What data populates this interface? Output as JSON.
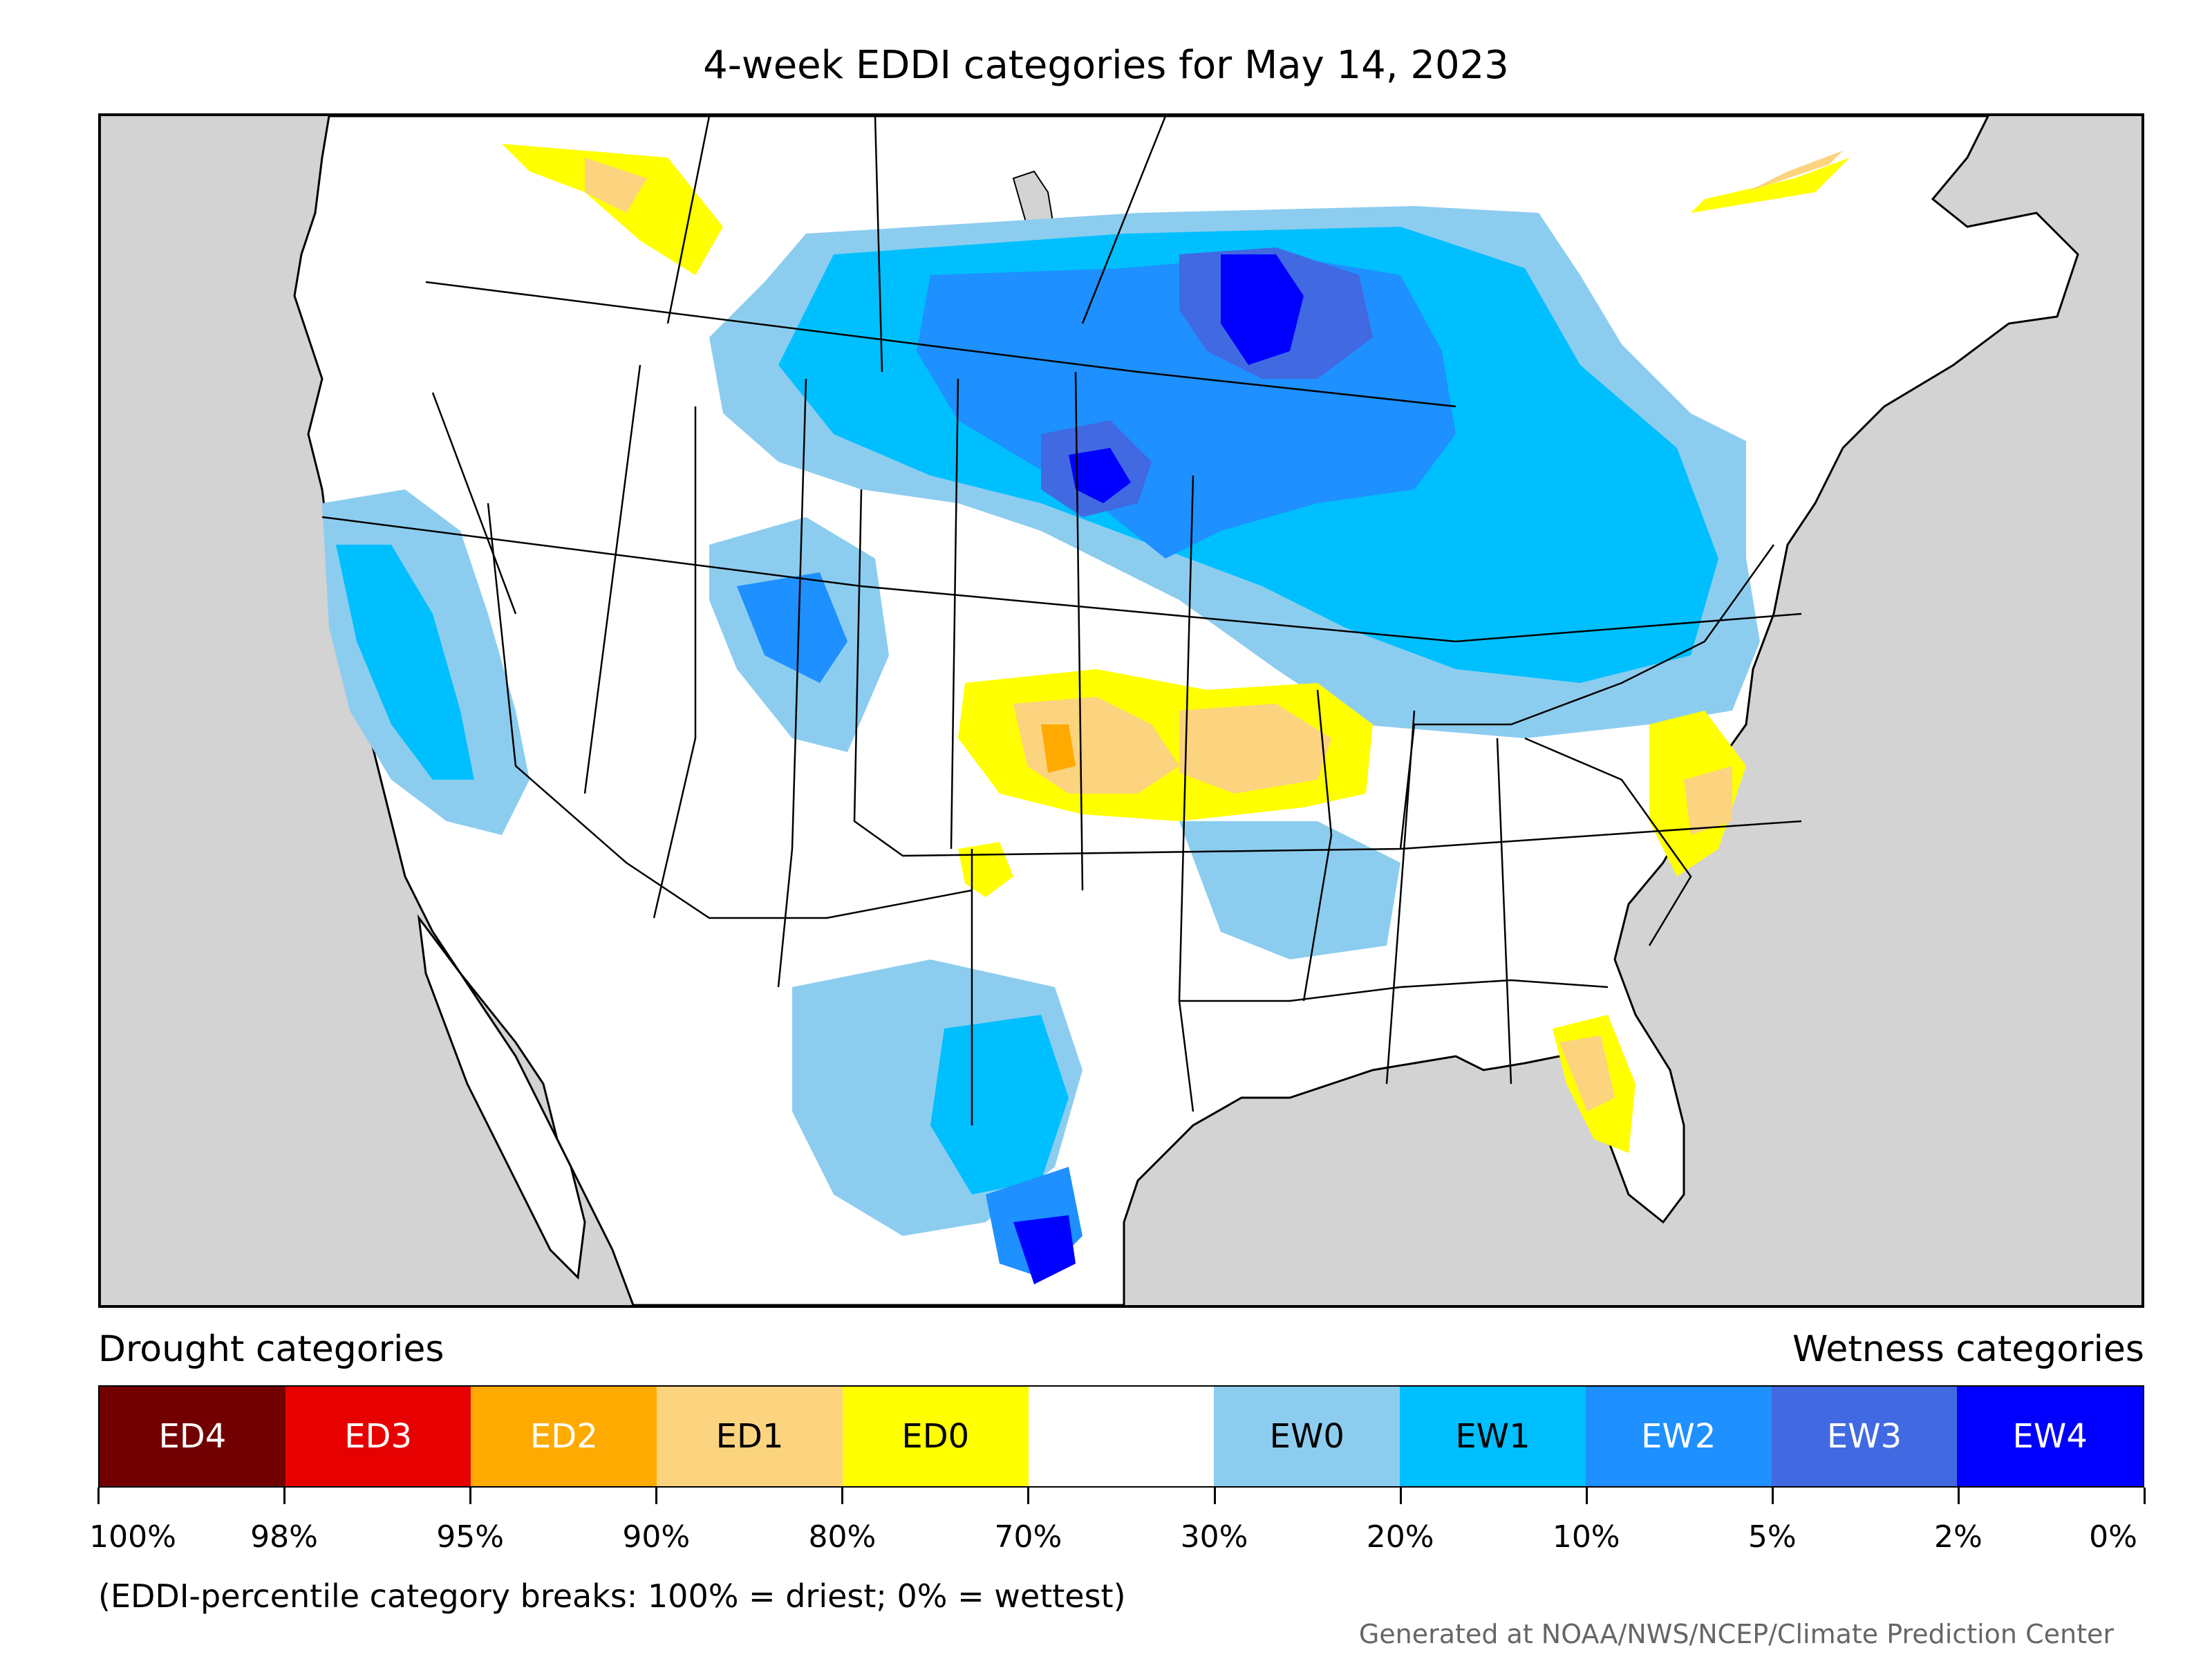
{
  "title": "4-week EDDI categories for May 14, 2023",
  "legend": {
    "drought_heading": "Drought categories",
    "wetness_heading": "Wetness categories",
    "categories": [
      {
        "label": "ED4",
        "color": "#730000",
        "text_color": "#ffffff"
      },
      {
        "label": "ED3",
        "color": "#e60000",
        "text_color": "#ffffff"
      },
      {
        "label": "ED2",
        "color": "#ffaa00",
        "text_color": "#ffffff"
      },
      {
        "label": "ED1",
        "color": "#fcd37f",
        "text_color": "#000000"
      },
      {
        "label": "ED0",
        "color": "#ffff00",
        "text_color": "#000000"
      },
      {
        "label": "",
        "color": "#ffffff",
        "text_color": "#000000"
      },
      {
        "label": "EW0",
        "color": "#8ccdef",
        "text_color": "#000000"
      },
      {
        "label": "EW1",
        "color": "#00bfff",
        "text_color": "#000000"
      },
      {
        "label": "EW2",
        "color": "#1e90ff",
        "text_color": "#ffffff"
      },
      {
        "label": "EW3",
        "color": "#4169e1",
        "text_color": "#ffffff"
      },
      {
        "label": "EW4",
        "color": "#0000ff",
        "text_color": "#ffffff"
      }
    ],
    "ticks": [
      "100%",
      "98%",
      "95%",
      "90%",
      "80%",
      "70%",
      "30%",
      "20%",
      "10%",
      "5%",
      "2%",
      "0%"
    ]
  },
  "note": "(EDDI-percentile category breaks: 100% = driest; 0% = wettest)",
  "credit": "Generated at NOAA/NWS/NCEP/Climate Prediction Center",
  "map": {
    "land_color": "#ffffff",
    "water_color": "#d3d3d3"
  }
}
